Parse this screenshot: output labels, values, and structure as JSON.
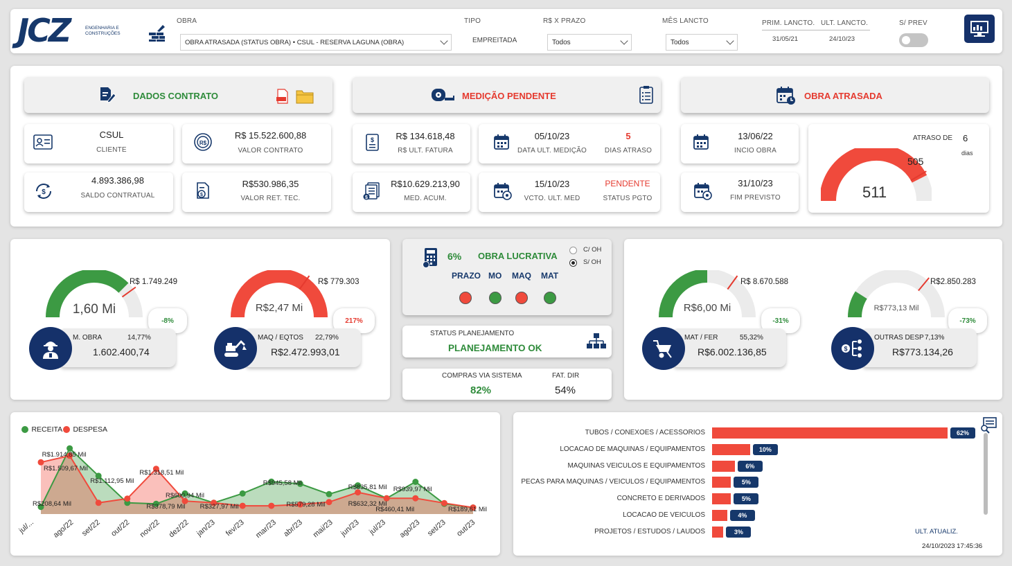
{
  "header": {
    "logo_text": "JCZ",
    "logo_sub1": "ENGENHARIA E",
    "logo_sub2": "CONSTRUÇÕES",
    "obra_label": "OBRA",
    "obra_value": "OBRA ATRASADA (STATUS OBRA) • CSUL - RESERVA LAGUNA (OBRA)",
    "tipo_label": "TIPO",
    "tipo_value": "EMPREITADA",
    "prazo_label": "R$ X PRAZO",
    "prazo_value": "Todos",
    "mes_label": "MÊS LANCTO",
    "mes_value": "Todos",
    "prim_label": "PRIM. LANCTO.",
    "prim_value": "31/05/21",
    "ult_label": "ULT. LANCTO.",
    "ult_value": "24/10/23",
    "sprev_label": "S/ PREV"
  },
  "dados_contrato": {
    "title": "DADOS CONTRATO",
    "cliente_value": "CSUL",
    "cliente_label": "CLIENTE",
    "valor_contrato_value": "R$ 15.522.600,88",
    "valor_contrato_label": "VALOR CONTRATO",
    "saldo_value": "4.893.386,98",
    "saldo_label": "SALDO CONTRATUAL",
    "ret_value": "R$530.986,35",
    "ret_label": "VALOR RET. TEC."
  },
  "medicao": {
    "title": "MEDIÇÃO PENDENTE",
    "ult_fatura_value": "R$ 134.618,48",
    "ult_fatura_label": "R$ ULT. FATURA",
    "data_med_value": "05/10/23",
    "data_med_label": "DATA ULT. MEDIÇÃO",
    "dias_atraso_value": "5",
    "dias_atraso_label": "DIAS ATRASO",
    "med_acum_value": "R$10.629.213,90",
    "med_acum_label": "MED. ACUM.",
    "vcto_value": "15/10/23",
    "vcto_label": "VCTO. ULT. MED",
    "status_pgto_value": "PENDENTE",
    "status_pgto_label": "STATUS PGTO"
  },
  "obra": {
    "title": "OBRA ATRASADA",
    "inicio_value": "13/06/22",
    "inicio_label": "INCIO OBRA",
    "fim_value": "31/10/23",
    "fim_label": "FIM PREVISTO",
    "atraso_label": "ATRASO DE",
    "atraso_value": "6",
    "atraso_unit": "dias",
    "gauge_target": "505",
    "gauge_value": "511",
    "gauge_fill": 0.85,
    "gauge_color": "#f04a3c"
  },
  "gauges": {
    "mobra": {
      "center": "1,60 Mi",
      "target": "R$ 1.749.249",
      "badge": "-8%",
      "badge_color": "#2e8b3a",
      "label": "M. OBRA",
      "pct": "14,77%",
      "value": "1.602.400,74",
      "fill": 0.75,
      "color": "#3c9a43"
    },
    "maq": {
      "center": "R$2,47 Mi",
      "target": "R$ 779.303",
      "badge": "217%",
      "badge_color": "#e53a2f",
      "label": "MAQ / EQTOS",
      "pct": "22,79%",
      "value": "R$2.472.993,01",
      "fill": 1.0,
      "color": "#f04a3c"
    },
    "mat": {
      "center": "R$6,00 Mi",
      "target": "R$ 8.670.588",
      "badge": "-31%",
      "badge_color": "#2e8b3a",
      "label": "MAT / FER",
      "pct": "55,32%",
      "value": "R$6.002.136,85",
      "fill": 0.5,
      "color": "#3c9a43"
    },
    "outras": {
      "center": "R$773,13 Mil",
      "target": "R$2.850.283",
      "badge": "-73%",
      "badge_color": "#2e8b3a",
      "label": "OUTRAS DESP",
      "pct": "7,13%",
      "value": "R$773.134,26",
      "fill": 0.18,
      "color": "#3c9a43"
    }
  },
  "lucrativa": {
    "pct": "6%",
    "title": "OBRA LUCRATIVA",
    "radio_coh": "C/ OH",
    "radio_soh": "S/ OH",
    "items": [
      {
        "label": "PRAZO",
        "color": "#f04a3c"
      },
      {
        "label": "MO",
        "color": "#3c9a43"
      },
      {
        "label": "MAQ",
        "color": "#f04a3c"
      },
      {
        "label": "MAT",
        "color": "#3c9a43"
      }
    ]
  },
  "planejamento": {
    "label": "STATUS PLANEJAMENTO",
    "value": "PLANEJAMENTO OK"
  },
  "compras": {
    "label": "COMPRAS VIA SISTEMA",
    "value": "82%",
    "fat_label": "FAT. DIR",
    "fat_value": "54%"
  },
  "chart_data": [
    {
      "type": "area",
      "legend": [
        "RECEITA",
        "DESPESA"
      ],
      "categories": [
        "jul/...",
        "ago/22",
        "set/22",
        "out/22",
        "nov/22",
        "dez/22",
        "jan/23",
        "fev/23",
        "mar/23",
        "abr/23",
        "mai/23",
        "jun/23",
        "jul/23",
        "ago/23",
        "set/23",
        "out/23"
      ],
      "series": [
        {
          "name": "RECEITA",
          "color": "#3c9a43",
          "values": [
            208.64,
            1914.85,
            1112.95,
            327.97,
            300,
            600.94,
            327.97,
            600,
            945.58,
            880,
            579.28,
            835.81,
            460.41,
            939.97,
            300,
            189.61
          ]
        },
        {
          "name": "DESPESA",
          "color": "#f04a3c",
          "values": [
            1509.67,
            1700,
            327.97,
            450,
            1318.51,
            378.79,
            327.97,
            240,
            240,
            280,
            350,
            632.32,
            460.41,
            460.41,
            320,
            189.61
          ]
        }
      ],
      "labels": [
        "R$208,64 Mil",
        "R$1.914,85 Mil",
        "R$1.509,67 Mil",
        "R$1.112,95 Mil",
        "R$1.318,51 Mil",
        "R$378,79 Mil",
        "R$600,94 Mil",
        "R$327,97 Mil",
        "R$945,58 Mil",
        "R$579,28 Mil",
        "R$835,81 Mil",
        "R$632,32 Mil",
        "R$460,41 Mil",
        "R$939,97 Mil",
        "R$189,61 Mil"
      ]
    },
    {
      "type": "bar",
      "categories": [
        "TUBOS / CONEXOES / ACESSORIOS",
        "LOCACAO DE MAQUINAS / EQUIPAMENTOS",
        "MAQUINAS VEICULOS E EQUIPAMENTOS",
        "PECAS PARA MAQUINAS / VEICULOS / EQUIPAMENTOS",
        "CONCRETO E DERIVADOS",
        "LOCACAO DE VEICULOS",
        "PROJETOS / ESTUDOS / LAUDOS"
      ],
      "values": [
        62,
        10,
        6,
        5,
        5,
        4,
        3
      ],
      "value_labels": [
        "62%",
        "10%",
        "6%",
        "5%",
        "5%",
        "4%",
        "3%"
      ]
    }
  ],
  "footer": {
    "ult_atualiz_label": "ULT. ATUALIZ.",
    "ult_atualiz_value": "24/10/2023 17:45:36"
  }
}
